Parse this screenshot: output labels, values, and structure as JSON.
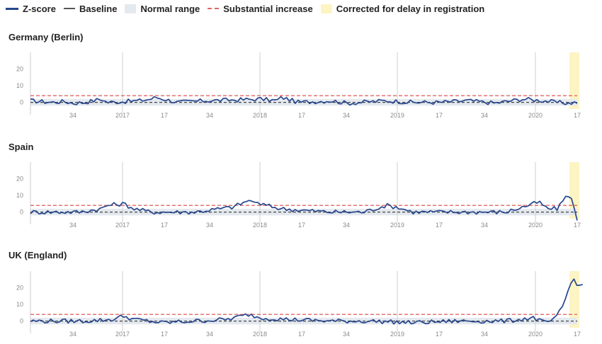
{
  "legend": {
    "items": [
      {
        "label": "Z-score",
        "color": "#26468d"
      },
      {
        "label": "Baseline",
        "color": "#555555"
      },
      {
        "label": "Normal range",
        "color": "#e4e9ef"
      },
      {
        "label": "Substantial increase",
        "color": "#e06666"
      },
      {
        "label": "Corrected for delay in registration",
        "color": "#fdf4c4"
      }
    ]
  },
  "chart_data": [
    {
      "type": "line",
      "title": "Germany (Berlin)",
      "ylim": [
        -4,
        30
      ],
      "yticks": [
        0,
        10,
        20
      ],
      "xticks": [
        {
          "label": "34"
        },
        {
          "label": "2017"
        },
        {
          "label": "17"
        },
        {
          "label": "34"
        },
        {
          "label": "2018"
        },
        {
          "label": "17"
        },
        {
          "label": "34"
        },
        {
          "label": "2019"
        },
        {
          "label": "17"
        },
        {
          "label": "34"
        },
        {
          "label": "2020"
        },
        {
          "label": "17"
        }
      ],
      "baseline": 0,
      "normal_range": [
        -2,
        2
      ],
      "substantial_increase": 4,
      "series": [
        {
          "name": "Z-score",
          "points": [
            [
              0,
              1
            ],
            [
              0.04,
              0
            ],
            [
              0.06,
              0.5
            ],
            [
              0.08,
              -0.5
            ],
            [
              0.1,
              0
            ],
            [
              0.13,
              2
            ],
            [
              0.14,
              0
            ],
            [
              0.2,
              1
            ],
            [
              0.22,
              2
            ],
            [
              0.23,
              3
            ],
            [
              0.27,
              0
            ],
            [
              0.32,
              1
            ],
            [
              0.38,
              1.5
            ],
            [
              0.42,
              2
            ],
            [
              0.45,
              1
            ],
            [
              0.46,
              3
            ],
            [
              0.49,
              0
            ],
            [
              0.55,
              1
            ],
            [
              0.58,
              -0.5
            ],
            [
              0.65,
              1
            ],
            [
              0.7,
              0
            ],
            [
              0.75,
              0
            ],
            [
              0.8,
              1
            ],
            [
              0.85,
              -0.5
            ],
            [
              0.9,
              2
            ],
            [
              0.94,
              1
            ],
            [
              0.96,
              0
            ],
            [
              0.985,
              -0.5
            ],
            [
              1,
              0
            ]
          ],
          "color": "#26468d"
        }
      ]
    },
    {
      "type": "line",
      "title": "Spain",
      "ylim": [
        -4,
        30
      ],
      "yticks": [
        0,
        10,
        20
      ],
      "xticks": [
        {
          "label": "34"
        },
        {
          "label": "2017"
        },
        {
          "label": "17"
        },
        {
          "label": "34"
        },
        {
          "label": "2018"
        },
        {
          "label": "17"
        },
        {
          "label": "34"
        },
        {
          "label": "2019"
        },
        {
          "label": "17"
        },
        {
          "label": "34"
        },
        {
          "label": "2020"
        },
        {
          "label": "17"
        }
      ],
      "baseline": 0,
      "normal_range": [
        -2,
        2
      ],
      "substantial_increase": 4,
      "series": [
        {
          "name": "Z-score",
          "points": [
            [
              0,
              0
            ],
            [
              0.09,
              0
            ],
            [
              0.13,
              2
            ],
            [
              0.14,
              4
            ],
            [
              0.17,
              5
            ],
            [
              0.19,
              2
            ],
            [
              0.22,
              0
            ],
            [
              0.3,
              0
            ],
            [
              0.37,
              3
            ],
            [
              0.4,
              7
            ],
            [
              0.43,
              4
            ],
            [
              0.46,
              2
            ],
            [
              0.5,
              1
            ],
            [
              0.55,
              0
            ],
            [
              0.61,
              0
            ],
            [
              0.65,
              4
            ],
            [
              0.67,
              3
            ],
            [
              0.7,
              0
            ],
            [
              0.8,
              0
            ],
            [
              0.87,
              0
            ],
            [
              0.93,
              6
            ],
            [
              0.945,
              2
            ],
            [
              0.965,
              2
            ],
            [
              0.98,
              10
            ],
            [
              0.99,
              8
            ],
            [
              1,
              -4
            ]
          ],
          "color": "#26468d"
        }
      ]
    },
    {
      "type": "line",
      "title": "UK (England)",
      "ylim": [
        -4,
        30
      ],
      "yticks": [
        0,
        10,
        20
      ],
      "xticks": [
        {
          "label": "34"
        },
        {
          "label": "2017"
        },
        {
          "label": "17"
        },
        {
          "label": "34"
        },
        {
          "label": "2018"
        },
        {
          "label": "17"
        },
        {
          "label": "34"
        },
        {
          "label": "2019"
        },
        {
          "label": "17"
        },
        {
          "label": "34"
        },
        {
          "label": "2020"
        },
        {
          "label": "17"
        }
      ],
      "baseline": 0,
      "normal_range": [
        -2,
        2
      ],
      "substantial_increase": 4,
      "series": [
        {
          "name": "Z-score",
          "points": [
            [
              0,
              0
            ],
            [
              0.1,
              0
            ],
            [
              0.15,
              1
            ],
            [
              0.17,
              3
            ],
            [
              0.19,
              1
            ],
            [
              0.24,
              -1
            ],
            [
              0.3,
              0
            ],
            [
              0.36,
              1
            ],
            [
              0.4,
              4
            ],
            [
              0.42,
              2
            ],
            [
              0.47,
              1
            ],
            [
              0.55,
              0
            ],
            [
              0.62,
              0
            ],
            [
              0.7,
              -1
            ],
            [
              0.78,
              0
            ],
            [
              0.87,
              0
            ],
            [
              0.92,
              2
            ],
            [
              0.94,
              -1
            ],
            [
              0.96,
              1
            ],
            [
              0.975,
              10
            ],
            [
              0.985,
              20
            ],
            [
              0.993,
              26
            ],
            [
              1,
              21
            ],
            [
              1.01,
              22
            ]
          ],
          "color": "#26468d"
        }
      ]
    }
  ]
}
